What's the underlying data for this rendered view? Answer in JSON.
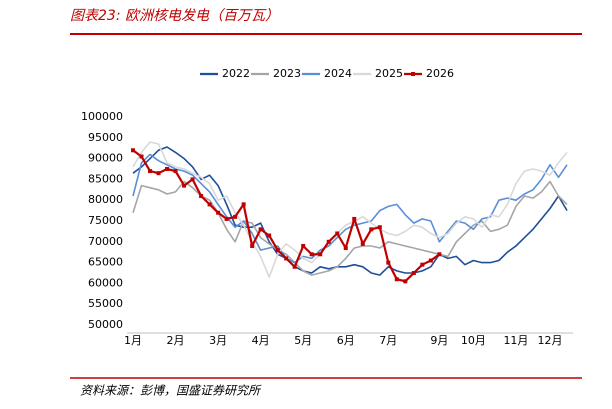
{
  "chart_data": {
    "type": "line",
    "title": "图表23: 欧洲核电发电（百万瓦）",
    "source": "资料来源：彭博，国盛证券研究所",
    "categories": [
      "1月",
      null,
      null,
      null,
      null,
      "2月",
      null,
      null,
      null,
      null,
      "3月",
      null,
      null,
      null,
      null,
      "4月",
      null,
      null,
      null,
      null,
      "5月",
      null,
      null,
      null,
      null,
      "6月",
      null,
      null,
      null,
      null,
      "7月",
      null,
      null,
      null,
      null,
      null,
      "9月",
      null,
      null,
      null,
      "10月",
      null,
      null,
      null,
      null,
      "11月",
      null,
      null,
      null,
      "12月",
      null,
      null
    ],
    "ylim": [
      50000,
      100000
    ],
    "yticks": [
      50000,
      55000,
      60000,
      65000,
      70000,
      75000,
      80000,
      85000,
      90000,
      95000,
      100000
    ],
    "grid": false,
    "legend": "top",
    "series": [
      {
        "name": "2022",
        "color": "#1f4e9a",
        "values": [
          86500,
          88000,
          90000,
          92000,
          92800,
          91500,
          90000,
          88000,
          85000,
          86000,
          83500,
          79000,
          74000,
          73500,
          73500,
          74500,
          70000,
          67000,
          66000,
          64000,
          63000,
          62500,
          64000,
          63500,
          64000,
          64000,
          64500,
          64000,
          62500,
          62000,
          64000,
          63000,
          62500,
          62500,
          63000,
          64000,
          67000,
          66000,
          66500,
          64500,
          65500,
          65000,
          65000,
          65500,
          67500,
          69000,
          71000,
          73000,
          75500,
          78000,
          81000,
          77500
        ]
      },
      {
        "name": "2023",
        "color": "#a5a5a5",
        "values": [
          77000,
          83500,
          83000,
          82500,
          81500,
          82000,
          84500,
          83000,
          81000,
          80000,
          77000,
          73000,
          70000,
          75000,
          74500,
          71000,
          69500,
          68000,
          67000,
          65000,
          63000,
          62000,
          62500,
          63000,
          64000,
          66000,
          68500,
          69000,
          69000,
          68500,
          70000,
          69500,
          69000,
          68500,
          68000,
          67500,
          67000,
          66500,
          70000,
          72000,
          74000,
          75000,
          72500,
          73000,
          74000,
          78500,
          81000,
          80500,
          82000,
          84500,
          81000,
          79000
        ]
      },
      {
        "name": "2024",
        "color": "#5b8ed6",
        "values": [
          81000,
          89000,
          91000,
          89500,
          88500,
          87500,
          87000,
          86000,
          84000,
          82000,
          79000,
          76000,
          73500,
          75000,
          72000,
          68000,
          68500,
          69000,
          66000,
          65000,
          66500,
          66000,
          68000,
          69000,
          71000,
          73000,
          74000,
          74500,
          75000,
          77500,
          78500,
          79000,
          76500,
          74500,
          75500,
          75000,
          70000,
          72500,
          75000,
          74500,
          73000,
          75500,
          76000,
          80000,
          80500,
          80000,
          81500,
          82500,
          85000,
          88500,
          85500,
          88500
        ]
      },
      {
        "name": "2025",
        "color": "#d9d9d9",
        "values": [
          88000,
          91500,
          94000,
          93500,
          89000,
          88000,
          87500,
          86500,
          85500,
          84000,
          80000,
          81000,
          77000,
          74000,
          70000,
          66500,
          61500,
          67000,
          69500,
          68000,
          66000,
          65000,
          67000,
          70000,
          72000,
          74000,
          75000,
          76000,
          74500,
          73000,
          72000,
          71500,
          72500,
          74000,
          73500,
          72000,
          71000,
          72000,
          74500,
          76000,
          75500,
          73500,
          76500,
          76000,
          79000,
          84000,
          87000,
          87500,
          87000,
          86000,
          89000,
          91500
        ]
      },
      {
        "name": "2026",
        "color": "#c00000",
        "marker": true,
        "values": [
          92000,
          90500,
          87000,
          86500,
          87500,
          87000,
          83500,
          85000,
          81000,
          79000,
          77000,
          75500,
          76000,
          79000,
          69000,
          73000,
          71500,
          68000,
          66000,
          64000,
          69000,
          67000,
          67000,
          70000,
          72000,
          68500,
          75500,
          69500,
          73000,
          73500,
          65000,
          61000,
          60500,
          62500,
          64500,
          65500,
          67000,
          null,
          null,
          null,
          null,
          null,
          null,
          null,
          null,
          null,
          null,
          null,
          null,
          null,
          null,
          null
        ]
      }
    ]
  }
}
